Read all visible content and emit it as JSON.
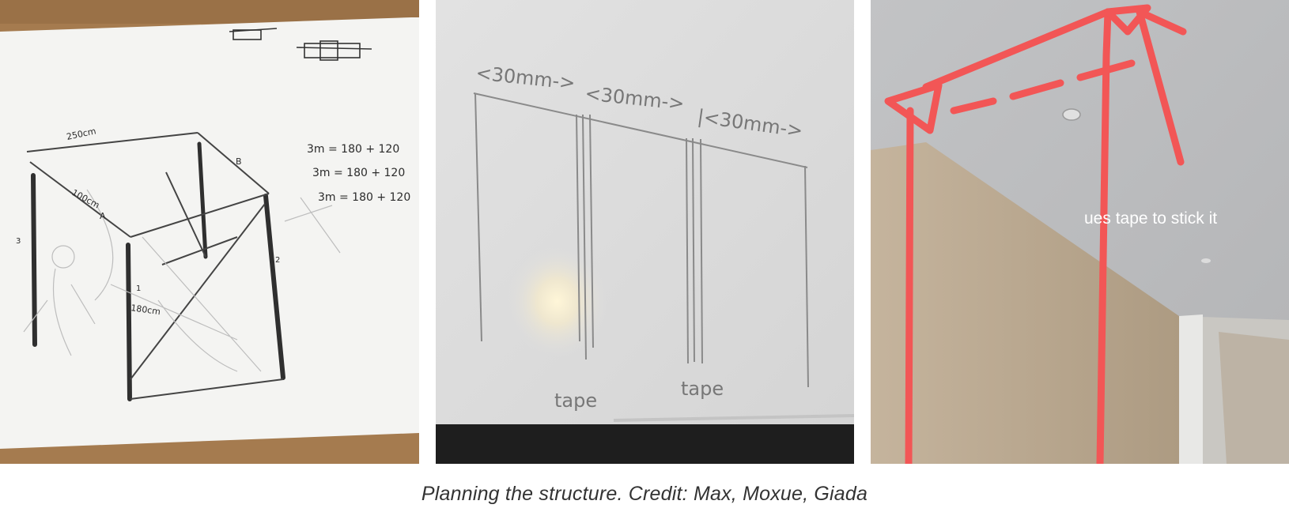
{
  "caption": "Planning the structure. Credit: Max, Moxue, Giada",
  "panel1": {
    "labels": {
      "width_top": "250cm",
      "side": "100cm",
      "height": "180cm",
      "marker_a": "A",
      "marker_b": "B",
      "num_1": "1",
      "num_2": "2",
      "num_3": "3"
    },
    "notes": {
      "line1": "3m = 180 + 120",
      "line2": "3m = 180 + 120",
      "line3": "3m = 180 + 120"
    }
  },
  "panel2": {
    "dims": [
      "<30mm->",
      "<30mm->",
      "|<30mm->"
    ],
    "tape_left": "tape",
    "tape_right": "tape"
  },
  "panel3": {
    "annotation": "ues tape to stick it",
    "stroke_color": "#f25656"
  }
}
